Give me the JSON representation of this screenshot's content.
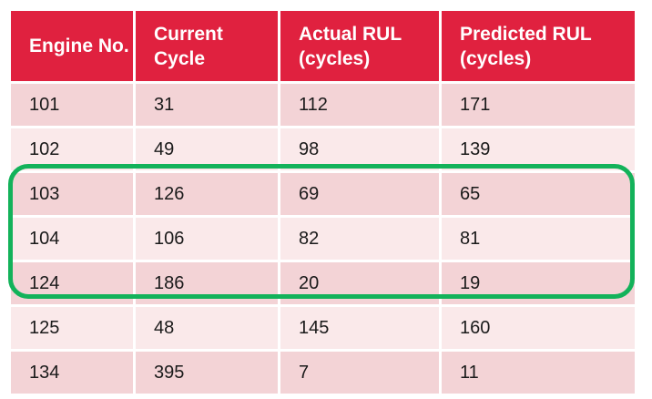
{
  "table": {
    "headers": [
      "Engine No.",
      "Current Cycle",
      "Actual RUL (cycles)",
      "Predicted RUL (cycles)"
    ],
    "rows": [
      [
        "101",
        "31",
        "112",
        "171"
      ],
      [
        "102",
        "49",
        "98",
        "139"
      ],
      [
        "103",
        "126",
        "69",
        "65"
      ],
      [
        "104",
        "106",
        "82",
        "81"
      ],
      [
        "124",
        "186",
        "20",
        "19"
      ],
      [
        "125",
        "48",
        "145",
        "160"
      ],
      [
        "134",
        "395",
        "7",
        "11"
      ]
    ]
  },
  "colors": {
    "header_bg": "#e0213f",
    "row_odd_bg": "#f3d3d6",
    "row_even_bg": "#fae9ea",
    "highlight_border": "#13b25a"
  }
}
